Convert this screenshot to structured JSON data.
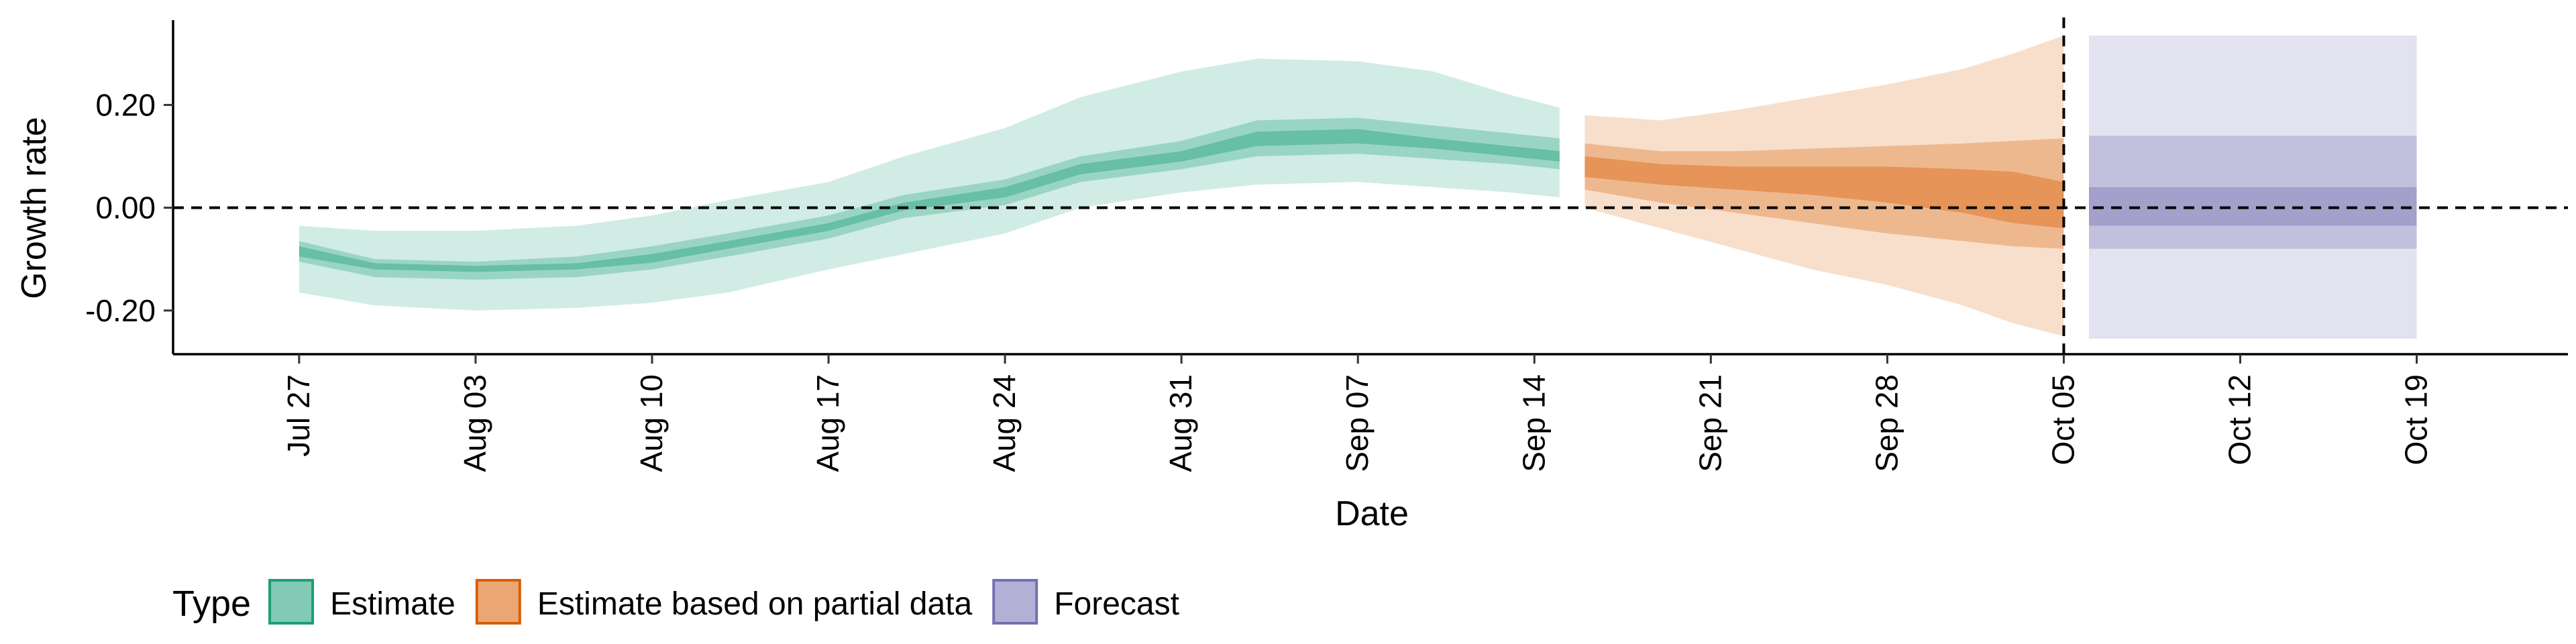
{
  "chart_data": {
    "type": "area",
    "xlabel": "Date",
    "ylabel": "Growth rate",
    "x_axis": {
      "type": "date",
      "range": [
        "2020-07-22",
        "2020-10-25"
      ],
      "ticks": [
        {
          "date": "2020-07-27",
          "label": "Jul 27"
        },
        {
          "date": "2020-08-03",
          "label": "Aug 03"
        },
        {
          "date": "2020-08-10",
          "label": "Aug 10"
        },
        {
          "date": "2020-08-17",
          "label": "Aug 17"
        },
        {
          "date": "2020-08-24",
          "label": "Aug 24"
        },
        {
          "date": "2020-08-31",
          "label": "Aug 31"
        },
        {
          "date": "2020-09-07",
          "label": "Sep 07"
        },
        {
          "date": "2020-09-14",
          "label": "Sep 14"
        },
        {
          "date": "2020-09-21",
          "label": "Sep 21"
        },
        {
          "date": "2020-09-28",
          "label": "Sep 28"
        },
        {
          "date": "2020-10-05",
          "label": "Oct 05"
        },
        {
          "date": "2020-10-12",
          "label": "Oct 12"
        },
        {
          "date": "2020-10-19",
          "label": "Oct 19"
        }
      ]
    },
    "y_axis": {
      "range": [
        -0.285,
        0.365
      ],
      "ticks": [
        {
          "value": -0.2,
          "label": "-0.20"
        },
        {
          "value": 0.0,
          "label": "0.00"
        },
        {
          "value": 0.2,
          "label": "0.20"
        }
      ]
    },
    "reference_lines": [
      {
        "axis": "y",
        "value": 0.0,
        "style": "dashed"
      },
      {
        "axis": "x",
        "value": "2020-10-05",
        "style": "dashed"
      }
    ],
    "grid": false,
    "legend": {
      "position": "bottom-left",
      "title": "Type",
      "entries": [
        {
          "label": "Estimate",
          "color": "#1b9e77"
        },
        {
          "label": "Estimate based on partial data",
          "color": "#d95f02"
        },
        {
          "label": "Forecast",
          "color": "#7570b3"
        }
      ]
    },
    "series": [
      {
        "type": "Estimate",
        "color": "#1b9e77",
        "x": [
          "2020-07-27",
          "2020-07-30",
          "2020-08-03",
          "2020-08-07",
          "2020-08-10",
          "2020-08-13",
          "2020-08-17",
          "2020-08-20",
          "2020-08-24",
          "2020-08-27",
          "2020-08-31",
          "2020-09-03",
          "2020-09-07",
          "2020-09-10",
          "2020-09-13",
          "2020-09-15"
        ],
        "lower90": [
          -0.165,
          -0.19,
          -0.2,
          -0.195,
          -0.185,
          -0.165,
          -0.12,
          -0.09,
          -0.05,
          0.0,
          0.03,
          0.045,
          0.05,
          0.04,
          0.03,
          0.02
        ],
        "lower50": [
          -0.105,
          -0.135,
          -0.14,
          -0.135,
          -0.12,
          -0.095,
          -0.06,
          -0.02,
          0.005,
          0.05,
          0.075,
          0.1,
          0.105,
          0.095,
          0.085,
          0.075
        ],
        "lower20": [
          -0.095,
          -0.12,
          -0.125,
          -0.12,
          -0.107,
          -0.08,
          -0.045,
          -0.005,
          0.02,
          0.065,
          0.09,
          0.12,
          0.125,
          0.115,
          0.1,
          0.09
        ],
        "median": [
          -0.085,
          -0.115,
          -0.12,
          -0.115,
          -0.1,
          -0.075,
          -0.04,
          0.0,
          0.03,
          0.075,
          0.1,
          0.135,
          0.14,
          0.125,
          0.11,
          0.1
        ],
        "upper20": [
          -0.075,
          -0.108,
          -0.113,
          -0.108,
          -0.09,
          -0.065,
          -0.03,
          0.01,
          0.04,
          0.085,
          0.11,
          0.148,
          0.153,
          0.135,
          0.12,
          0.11
        ],
        "upper50": [
          -0.065,
          -0.1,
          -0.105,
          -0.095,
          -0.075,
          -0.05,
          -0.015,
          0.025,
          0.055,
          0.1,
          0.13,
          0.17,
          0.175,
          0.16,
          0.145,
          0.135
        ],
        "upper90": [
          -0.035,
          -0.045,
          -0.045,
          -0.035,
          -0.015,
          0.015,
          0.05,
          0.1,
          0.155,
          0.215,
          0.265,
          0.29,
          0.285,
          0.265,
          0.22,
          0.195
        ]
      },
      {
        "type": "Estimate based on partial data",
        "color": "#d95f02",
        "x": [
          "2020-09-16",
          "2020-09-19",
          "2020-09-22",
          "2020-09-25",
          "2020-09-28",
          "2020-10-01",
          "2020-10-03",
          "2020-10-05"
        ],
        "lower90": [
          0.0,
          -0.04,
          -0.08,
          -0.12,
          -0.15,
          -0.19,
          -0.225,
          -0.25
        ],
        "lower50": [
          0.035,
          0.01,
          -0.01,
          -0.03,
          -0.05,
          -0.065,
          -0.075,
          -0.08
        ],
        "lower20": [
          0.06,
          0.045,
          0.035,
          0.025,
          0.01,
          -0.01,
          -0.03,
          -0.04
        ],
        "median": [
          0.09,
          0.07,
          0.065,
          0.06,
          0.055,
          0.05,
          0.02,
          -0.02
        ],
        "upper20": [
          0.1,
          0.085,
          0.08,
          0.08,
          0.08,
          0.075,
          0.07,
          0.05
        ],
        "upper50": [
          0.125,
          0.11,
          0.11,
          0.115,
          0.12,
          0.125,
          0.13,
          0.135
        ],
        "upper90": [
          0.18,
          0.17,
          0.19,
          0.215,
          0.24,
          0.27,
          0.3,
          0.335
        ]
      },
      {
        "type": "Forecast",
        "color": "#7570b3",
        "x": [
          "2020-10-06",
          "2020-10-19"
        ],
        "lower90": [
          -0.255,
          -0.255
        ],
        "lower50": [
          -0.08,
          -0.08
        ],
        "lower20": [
          -0.035,
          -0.035
        ],
        "median": [
          0.0,
          0.0
        ],
        "upper20": [
          0.04,
          0.04
        ],
        "upper50": [
          0.14,
          0.14
        ],
        "upper90": [
          0.335,
          0.335
        ]
      }
    ]
  }
}
